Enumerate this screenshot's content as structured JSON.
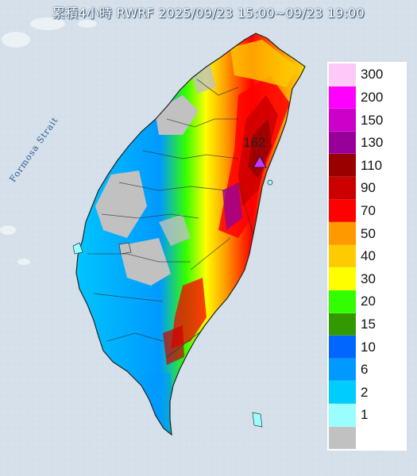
{
  "title": "累積4小時 RWRF 2025/09/23 15:00~09/23 19:00",
  "sea_label": "Formosa Strait",
  "station": {
    "label": "162",
    "marker": "triangle-icon",
    "color": "#cc33ff"
  },
  "legend": {
    "items": [
      {
        "label": "300",
        "color": "#fdcaf8"
      },
      {
        "label": "200",
        "color": "#fe00fe"
      },
      {
        "label": "150",
        "color": "#cb00cb"
      },
      {
        "label": "130",
        "color": "#990099"
      },
      {
        "label": "110",
        "color": "#990000"
      },
      {
        "label": "90",
        "color": "#cc0000"
      },
      {
        "label": "70",
        "color": "#fe0000"
      },
      {
        "label": "50",
        "color": "#fe9900"
      },
      {
        "label": "40",
        "color": "#fecb00"
      },
      {
        "label": "30",
        "color": "#fefe00"
      },
      {
        "label": "20",
        "color": "#33fe00"
      },
      {
        "label": "15",
        "color": "#339900"
      },
      {
        "label": "10",
        "color": "#0066fe"
      },
      {
        "label": "6",
        "color": "#0099fe"
      },
      {
        "label": "2",
        "color": "#00ccfe"
      },
      {
        "label": "1",
        "color": "#9afefe"
      },
      {
        "label": "",
        "color": "#c1c1c1"
      }
    ]
  }
}
